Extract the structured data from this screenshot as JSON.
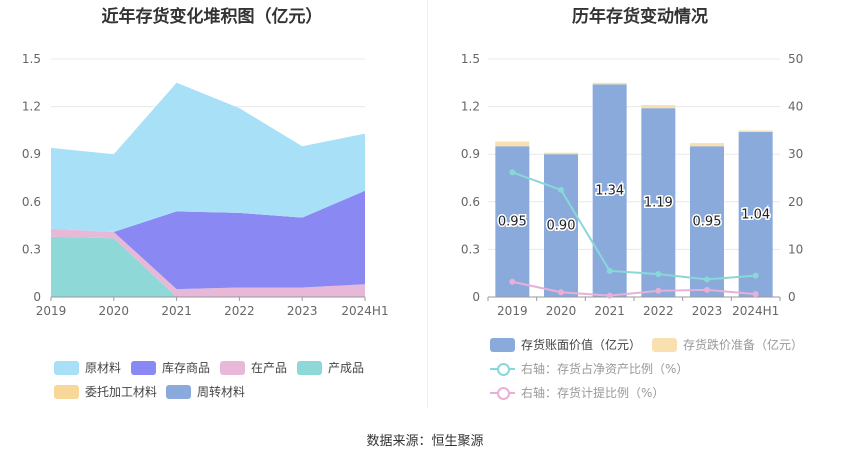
{
  "source": "数据来源：恒生聚源",
  "chart_data": [
    {
      "type": "area",
      "title": "近年存货变化堆积图（亿元）",
      "x": [
        "2019",
        "2020",
        "2021",
        "2022",
        "2023",
        "2024H1"
      ],
      "ylim": [
        0,
        1.5
      ],
      "yticks": [
        "0",
        "0.3",
        "0.6",
        "0.9",
        "1.2",
        "1.5"
      ],
      "stacked": true,
      "series": [
        {
          "name": "产成品",
          "color": "#8ed8d8",
          "values": [
            0.38,
            0.37,
            0.0,
            0.0,
            0.0,
            0.0
          ]
        },
        {
          "name": "在产品",
          "color": "#e8b8d8",
          "values": [
            0.05,
            0.04,
            0.05,
            0.06,
            0.06,
            0.08
          ]
        },
        {
          "name": "库存商品",
          "color": "#8a88f2",
          "values": [
            0.0,
            0.0,
            0.49,
            0.47,
            0.44,
            0.59
          ]
        },
        {
          "name": "原材料",
          "color": "#a8e0f8",
          "values": [
            0.51,
            0.49,
            0.81,
            0.66,
            0.45,
            0.36
          ]
        },
        {
          "name": "委托加工材料",
          "color": "#f8d898",
          "values": [
            0,
            0,
            0,
            0,
            0,
            0
          ]
        },
        {
          "name": "周转材料",
          "color": "#8aaadc",
          "values": [
            0,
            0,
            0,
            0,
            0,
            0
          ]
        }
      ],
      "legend": [
        "原材料",
        "库存商品",
        "在产品",
        "产成品",
        "委托加工材料",
        "周转材料"
      ],
      "grid": true,
      "legend_position": "bottom"
    },
    {
      "type": "bar",
      "title": "历年存货变动情况",
      "categories": [
        "2019",
        "2020",
        "2021",
        "2022",
        "2023",
        "2024H1"
      ],
      "ylim": [
        0,
        1.5
      ],
      "yticks": [
        "0",
        "0.3",
        "0.6",
        "0.9",
        "1.2",
        "1.5"
      ],
      "y2lim": [
        0,
        50
      ],
      "y2ticks": [
        "0",
        "10",
        "20",
        "30",
        "40",
        "50"
      ],
      "series": [
        {
          "name": "存货账面价值（亿元）",
          "color": "#8aaadc",
          "values": [
            0.95,
            0.9,
            1.34,
            1.19,
            0.95,
            1.04
          ],
          "labels": [
            "0.95",
            "0.90",
            "1.34",
            "1.19",
            "0.95",
            "1.04"
          ]
        },
        {
          "name": "存货跌价准备（亿元）",
          "color": "#f8e0b0",
          "values": [
            0.03,
            0.01,
            0.01,
            0.02,
            0.02,
            0.01
          ]
        }
      ],
      "lines": [
        {
          "name": "右轴：存货占净资产比例（%）",
          "color": "#88d8d8",
          "axis": "right",
          "values": [
            26.2,
            22.5,
            5.5,
            4.8,
            3.7,
            4.5
          ]
        },
        {
          "name": "右轴：存货计提比例（%）",
          "color": "#e8b0d8",
          "axis": "right",
          "values": [
            3.2,
            1.0,
            0.3,
            1.3,
            1.5,
            0.6
          ]
        }
      ],
      "grid": true,
      "legend_position": "bottom"
    }
  ]
}
